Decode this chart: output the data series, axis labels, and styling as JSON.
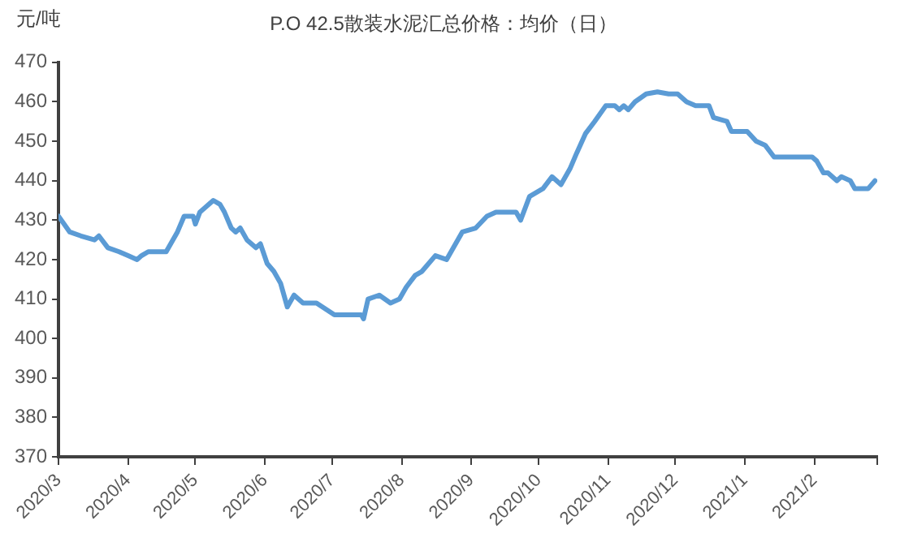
{
  "chart_data": {
    "type": "line",
    "title": "P.O 42.5散装水泥汇总价格：均价（日）",
    "ylabel": "元/吨",
    "x": [
      "2020-03-01",
      "2020-03-06",
      "2020-03-11",
      "2020-03-17",
      "2020-03-19",
      "2020-03-23",
      "2020-03-28",
      "2020-04-01",
      "2020-04-05",
      "2020-04-07",
      "2020-04-10",
      "2020-04-18",
      "2020-04-23",
      "2020-04-26",
      "2020-04-30",
      "2020-05-01",
      "2020-05-03",
      "2020-05-06",
      "2020-05-09",
      "2020-05-12",
      "2020-05-14",
      "2020-05-17",
      "2020-05-19",
      "2020-05-21",
      "2020-05-24",
      "2020-05-28",
      "2020-05-30",
      "2020-06-02",
      "2020-06-05",
      "2020-06-08",
      "2020-06-11",
      "2020-06-14",
      "2020-06-18",
      "2020-06-24",
      "2020-07-02",
      "2020-07-06",
      "2020-07-14",
      "2020-07-15",
      "2020-07-17",
      "2020-07-22",
      "2020-07-27",
      "2020-07-31",
      "2020-08-03",
      "2020-08-07",
      "2020-08-10",
      "2020-08-16",
      "2020-08-21",
      "2020-08-28",
      "2020-09-03",
      "2020-09-08",
      "2020-09-12",
      "2020-09-21",
      "2020-09-23",
      "2020-09-27",
      "2020-10-03",
      "2020-10-07",
      "2020-10-11",
      "2020-10-15",
      "2020-10-18",
      "2020-10-22",
      "2020-10-26",
      "2020-10-31",
      "2020-11-04",
      "2020-11-06",
      "2020-11-08",
      "2020-11-10",
      "2020-11-13",
      "2020-11-18",
      "2020-11-23",
      "2020-11-28",
      "2020-12-02",
      "2020-12-06",
      "2020-12-10",
      "2020-12-16",
      "2020-12-18",
      "2020-12-24",
      "2020-12-26",
      "2021-01-02",
      "2021-01-06",
      "2021-01-10",
      "2021-01-14",
      "2021-01-31",
      "2021-02-02",
      "2021-02-05",
      "2021-02-07",
      "2021-02-11",
      "2021-02-13",
      "2021-02-17",
      "2021-02-19",
      "2021-02-25",
      "2021-02-28"
    ],
    "series": [
      {
        "color": "#5b9bd5",
        "values": [
          431,
          427,
          426,
          425,
          426,
          423,
          422,
          421,
          420,
          421,
          422,
          422,
          427,
          431,
          431,
          429,
          432,
          433.5,
          435,
          434,
          432,
          428,
          427,
          428,
          425,
          423,
          424,
          419,
          417,
          414,
          408,
          411,
          409,
          409,
          406,
          406,
          406,
          405,
          410,
          411,
          409,
          410,
          413,
          416,
          417,
          421,
          420,
          427,
          428,
          431,
          432,
          432,
          430,
          436,
          438,
          441,
          439,
          443,
          447,
          452,
          455,
          459,
          459,
          458,
          459,
          458,
          460,
          462,
          462.5,
          462,
          462,
          460,
          459,
          459,
          456,
          455,
          452.5,
          452.5,
          450,
          449,
          446,
          446,
          445,
          442,
          442,
          440,
          441,
          440,
          438,
          438,
          440
        ]
      }
    ],
    "xlim": [
      "2020-03-01",
      "2021-03-01"
    ],
    "xticks": [
      {
        "value": "2020-03-01",
        "label": "2020/3"
      },
      {
        "value": "2020-04-01",
        "label": "2020/4"
      },
      {
        "value": "2020-05-01",
        "label": "2020/5"
      },
      {
        "value": "2020-06-01",
        "label": "2020/6"
      },
      {
        "value": "2020-07-01",
        "label": "2020/7"
      },
      {
        "value": "2020-08-01",
        "label": "2020/8"
      },
      {
        "value": "2020-09-01",
        "label": "2020/9"
      },
      {
        "value": "2020-10-01",
        "label": "2020/10"
      },
      {
        "value": "2020-11-01",
        "label": "2020/11"
      },
      {
        "value": "2020-12-01",
        "label": "2020/12"
      },
      {
        "value": "2021-01-01",
        "label": "2021/1"
      },
      {
        "value": "2021-02-01",
        "label": "2021/2"
      },
      {
        "value": "2021-03-01",
        "label": null
      }
    ],
    "ylim": [
      370,
      470
    ],
    "yticks": [
      370,
      380,
      390,
      400,
      410,
      420,
      430,
      440,
      450,
      460,
      470
    ],
    "grid": false,
    "legend": false,
    "marker": "none",
    "line_style": "solid"
  }
}
